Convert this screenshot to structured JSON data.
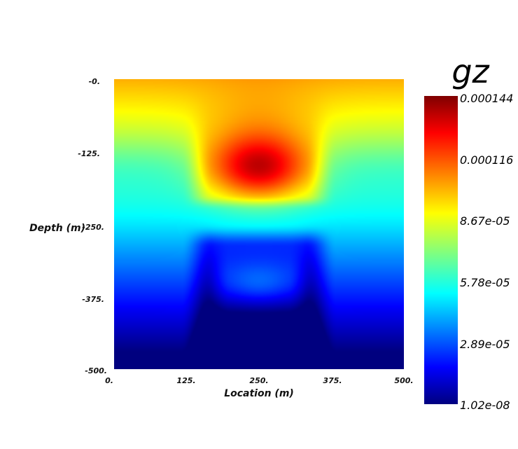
{
  "chart_data": {
    "type": "heatmap",
    "title": "",
    "xlabel": "Location (m)",
    "ylabel": "Depth (m)",
    "xlim": [
      0,
      500
    ],
    "ylim": [
      -500,
      0
    ],
    "x_ticks": [
      "0.",
      "125.",
      "250.",
      "375.",
      "500."
    ],
    "y_ticks": [
      "-0.",
      "-125.",
      "-250.",
      "-375.",
      "-500."
    ],
    "colormap": "jet",
    "colorbar": {
      "title": "gz",
      "min": 1.02e-08,
      "max": 0.000144,
      "labels": [
        "0.000144",
        "0.000116",
        "8.67e-05",
        "5.78e-05",
        "2.89e-05",
        "1.02e-08"
      ]
    },
    "grid": false
  }
}
